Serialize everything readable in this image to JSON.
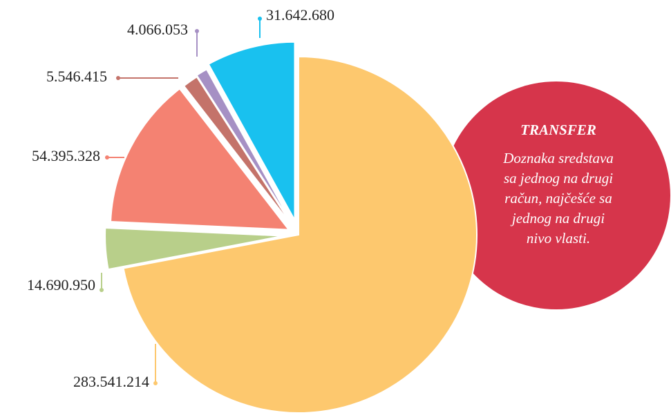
{
  "chart_data": {
    "type": "pie",
    "categories": [
      null,
      null,
      null,
      null,
      null,
      null
    ],
    "values": [
      283541214,
      14690950,
      54395328,
      5546415,
      4066053,
      31642680
    ],
    "value_labels": [
      "283.541.214",
      "14.690.950",
      "54.395.328",
      "5.546.415",
      "4.066.053",
      "31.642.680"
    ],
    "colors": [
      "#fdc86e",
      "#b8cf8a",
      "#f48272",
      "#c4736a",
      "#a690c4",
      "#19c1ef"
    ],
    "annotation_title": "TRANSFER",
    "annotation_lines": [
      "Doznaka sredstava",
      "sa jednog na drugi",
      "račun, najčešće sa",
      "jednog na drugi",
      "nivo vlasti."
    ],
    "annotation_color": "#d6354b"
  }
}
